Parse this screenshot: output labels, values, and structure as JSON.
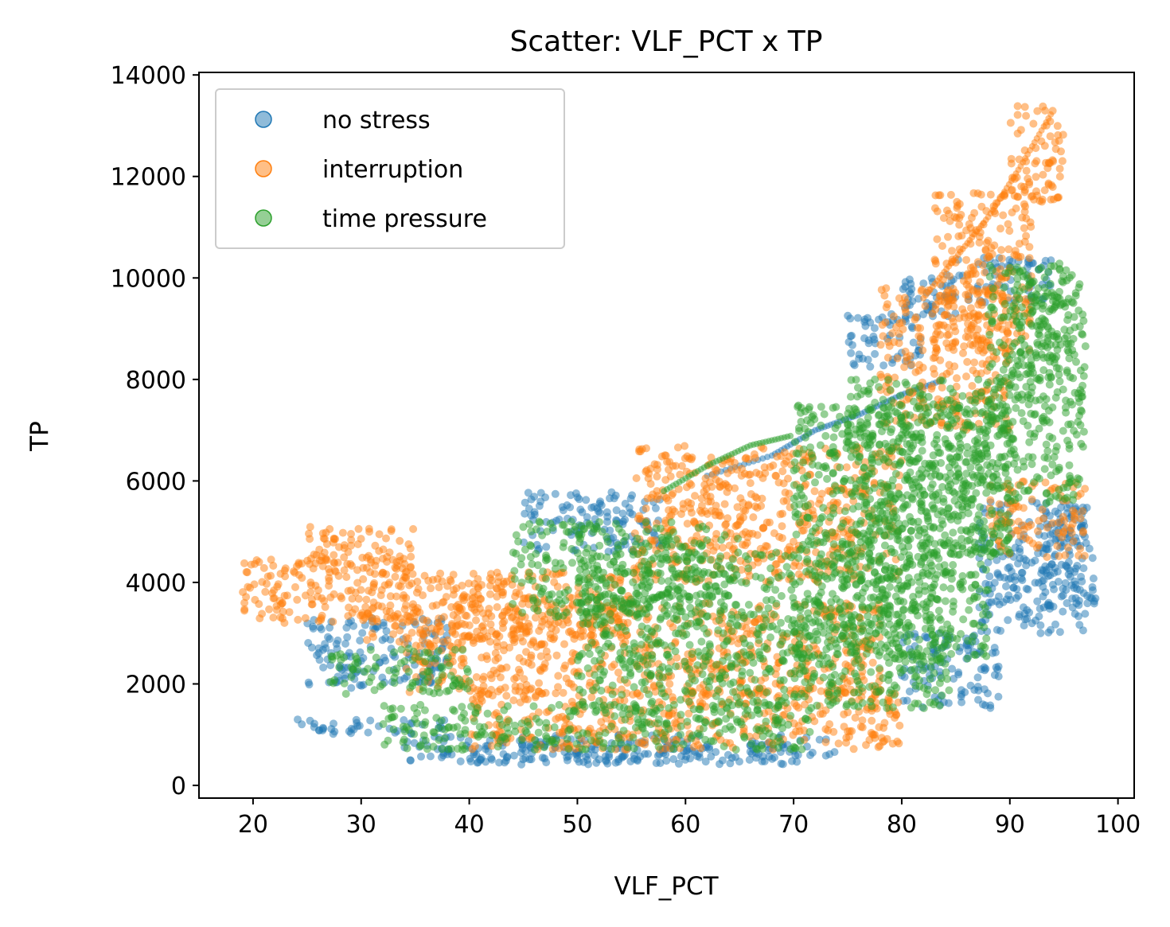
{
  "chart_data": {
    "type": "scatter",
    "title": "Scatter: VLF_PCT x TP",
    "xlabel": "VLF_PCT",
    "ylabel": "TP",
    "xlim": [
      15,
      101.5
    ],
    "ylim": [
      -250,
      14050
    ],
    "xticks": [
      20,
      30,
      40,
      50,
      60,
      70,
      80,
      90,
      100
    ],
    "yticks": [
      0,
      2000,
      4000,
      6000,
      8000,
      10000,
      12000,
      14000
    ],
    "grid": false,
    "legend_position": "top-left",
    "marker_alpha": 0.5,
    "series": [
      {
        "name": "no stress",
        "color": "#1f77b4",
        "regions": [
          {
            "x": [
              24,
              38
            ],
            "y": [
              1000,
              1300
            ]
          },
          {
            "x": [
              25,
              38
            ],
            "y": [
              1900,
              3300
            ]
          },
          {
            "x": [
              34,
              74
            ],
            "y": [
              450,
              1000
            ]
          },
          {
            "x": [
              40,
              70
            ],
            "y": [
              400,
              800
            ]
          },
          {
            "x": [
              45,
              58
            ],
            "y": [
              4600,
              5800
            ]
          },
          {
            "x": [
              75,
              82
            ],
            "y": [
              8200,
              9300
            ]
          },
          {
            "x": [
              80,
              85
            ],
            "y": [
              9200,
              10000
            ]
          },
          {
            "x": [
              84,
              94
            ],
            "y": [
              9500,
              10400
            ]
          },
          {
            "x": [
              80,
              89
            ],
            "y": [
              1500,
              3000
            ]
          },
          {
            "x": [
              87,
              97
            ],
            "y": [
              3000,
              5600
            ]
          },
          {
            "x": [
              93,
              98
            ],
            "y": [
              3500,
              5500
            ]
          }
        ],
        "curves": [
          {
            "x": [
              62,
              68,
              72,
              76,
              80,
              84
            ],
            "y": [
              6100,
              6500,
              7000,
              7300,
              7700,
              8000
            ]
          }
        ]
      },
      {
        "name": "interruption",
        "color": "#ff7f0e",
        "regions": [
          {
            "x": [
              19,
              35
            ],
            "y": [
              3200,
              4500
            ]
          },
          {
            "x": [
              25,
              35
            ],
            "y": [
              4200,
              5100
            ]
          },
          {
            "x": [
              30,
              55
            ],
            "y": [
              2800,
              4200
            ]
          },
          {
            "x": [
              34,
              78
            ],
            "y": [
              1800,
              3600
            ]
          },
          {
            "x": [
              40,
              80
            ],
            "y": [
              700,
              1900
            ]
          },
          {
            "x": [
              55,
              80
            ],
            "y": [
              4000,
              6700
            ]
          },
          {
            "x": [
              78,
              90
            ],
            "y": [
              7000,
              9800
            ]
          },
          {
            "x": [
              83,
              92
            ],
            "y": [
              8500,
              11700
            ]
          },
          {
            "x": [
              90,
              95
            ],
            "y": [
              11500,
              13400
            ]
          },
          {
            "x": [
              88,
              97
            ],
            "y": [
              4500,
              6000
            ]
          }
        ],
        "curves": [
          {
            "x": [
              82,
              85,
              88,
              91,
              94
            ],
            "y": [
              9600,
              10400,
              11200,
              12200,
              13300
            ]
          }
        ]
      },
      {
        "name": "time pressure",
        "color": "#2ca02c",
        "regions": [
          {
            "x": [
              27,
              40
            ],
            "y": [
              1800,
              2700
            ]
          },
          {
            "x": [
              32,
              72
            ],
            "y": [
              700,
              1600
            ]
          },
          {
            "x": [
              44,
              65
            ],
            "y": [
              3300,
              5200
            ]
          },
          {
            "x": [
              50,
              85
            ],
            "y": [
              1500,
              4600
            ]
          },
          {
            "x": [
              70,
              88
            ],
            "y": [
              2500,
              7500
            ]
          },
          {
            "x": [
              75,
              90
            ],
            "y": [
              4500,
              8000
            ]
          },
          {
            "x": [
              88,
              97
            ],
            "y": [
              5500,
              10300
            ]
          },
          {
            "x": [
              90,
              96
            ],
            "y": [
              8000,
              10200
            ]
          }
        ],
        "curves": [
          {
            "x": [
              58,
              62,
              66,
              70
            ],
            "y": [
              5800,
              6300,
              6700,
              6900
            ]
          }
        ]
      }
    ]
  }
}
